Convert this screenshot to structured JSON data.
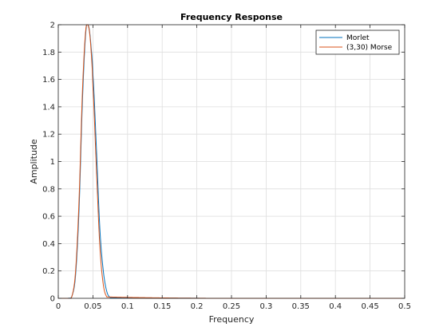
{
  "chart_data": {
    "type": "line",
    "title": "Frequency Response",
    "xlabel": "Frequency",
    "ylabel": "Amplitude",
    "xlim": [
      0,
      0.5
    ],
    "ylim": [
      0,
      2
    ],
    "xticks": [
      "0",
      "0.05",
      "0.1",
      "0.15",
      "0.2",
      "0.25",
      "0.3",
      "0.35",
      "0.4",
      "0.45",
      "0.5"
    ],
    "yticks": [
      "0",
      "0.2",
      "0.4",
      "0.6",
      "0.8",
      "1",
      "1.2",
      "1.4",
      "1.6",
      "1.8",
      "2"
    ],
    "grid": true,
    "legend_position": "top-right",
    "series": [
      {
        "name": "Morlet",
        "color": "#0072BD",
        "x": [
          0,
          0.015,
          0.02,
          0.025,
          0.03,
          0.035,
          0.04,
          0.0425,
          0.045,
          0.0475,
          0.05,
          0.055,
          0.06,
          0.065,
          0.07,
          0.075,
          0.5
        ],
        "y": [
          0,
          0.001,
          0.02,
          0.17,
          0.65,
          1.46,
          1.96,
          2.0,
          1.96,
          1.83,
          1.64,
          1.1,
          0.51,
          0.2,
          0.05,
          0.005,
          0
        ]
      },
      {
        "name": "(3,30) Morse",
        "color": "#D95319",
        "x": [
          0,
          0.015,
          0.02,
          0.025,
          0.03,
          0.035,
          0.04,
          0.0425,
          0.045,
          0.0475,
          0.05,
          0.055,
          0.06,
          0.065,
          0.07,
          0.5
        ],
        "y": [
          0,
          0.0,
          0.02,
          0.2,
          0.72,
          1.53,
          1.98,
          2.0,
          1.95,
          1.8,
          1.55,
          0.95,
          0.38,
          0.1,
          0.01,
          0
        ]
      }
    ]
  }
}
